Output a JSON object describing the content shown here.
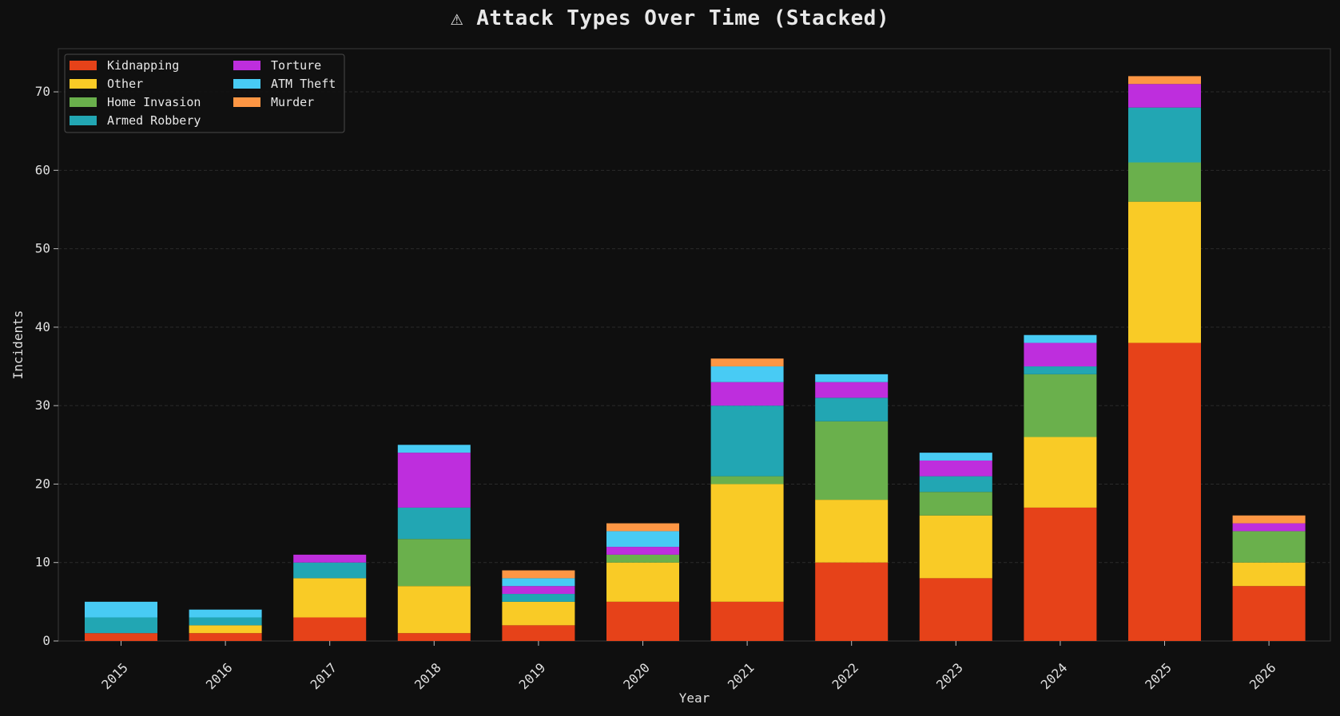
{
  "chart_data": {
    "type": "bar",
    "stacked": true,
    "title": "⚠ Attack Types Over Time (Stacked)",
    "xlabel": "Year",
    "ylabel": "Incidents",
    "ylim": [
      0,
      75.5
    ],
    "yticks": [
      0,
      10,
      20,
      30,
      40,
      50,
      60,
      70
    ],
    "grid": true,
    "legend_position": "top-left",
    "categories": [
      "2015",
      "2016",
      "2017",
      "2018",
      "2019",
      "2020",
      "2021",
      "2022",
      "2023",
      "2024",
      "2025",
      "2026"
    ],
    "series": [
      {
        "name": "Kidnapping",
        "color": "#e64219",
        "values": [
          1,
          1,
          3,
          1,
          2,
          5,
          5,
          10,
          8,
          17,
          38,
          7
        ]
      },
      {
        "name": "Other",
        "color": "#f9cb26",
        "values": [
          0,
          1,
          5,
          6,
          3,
          5,
          15,
          8,
          8,
          9,
          18,
          3
        ]
      },
      {
        "name": "Home Invasion",
        "color": "#6ab04c",
        "values": [
          0,
          0,
          0,
          6,
          0,
          1,
          1,
          10,
          3,
          8,
          5,
          4
        ]
      },
      {
        "name": "Armed Robbery",
        "color": "#22a6b3",
        "values": [
          2,
          1,
          2,
          4,
          1,
          0,
          9,
          3,
          2,
          1,
          7,
          0
        ]
      },
      {
        "name": "Torture",
        "color": "#be2edd",
        "values": [
          0,
          0,
          1,
          7,
          1,
          1,
          3,
          2,
          2,
          3,
          3,
          1
        ]
      },
      {
        "name": "ATM Theft",
        "color": "#48cbf4",
        "values": [
          2,
          1,
          0,
          1,
          1,
          2,
          2,
          1,
          1,
          1,
          0,
          0
        ]
      },
      {
        "name": "Murder",
        "color": "#fd9644",
        "values": [
          0,
          0,
          0,
          0,
          1,
          1,
          1,
          0,
          0,
          0,
          1,
          1
        ]
      }
    ]
  },
  "colors": {
    "background": "#0f0f0f",
    "frame": "#3a3a3a",
    "grid": "#2b2b2b",
    "text": "#e0e0e0"
  }
}
